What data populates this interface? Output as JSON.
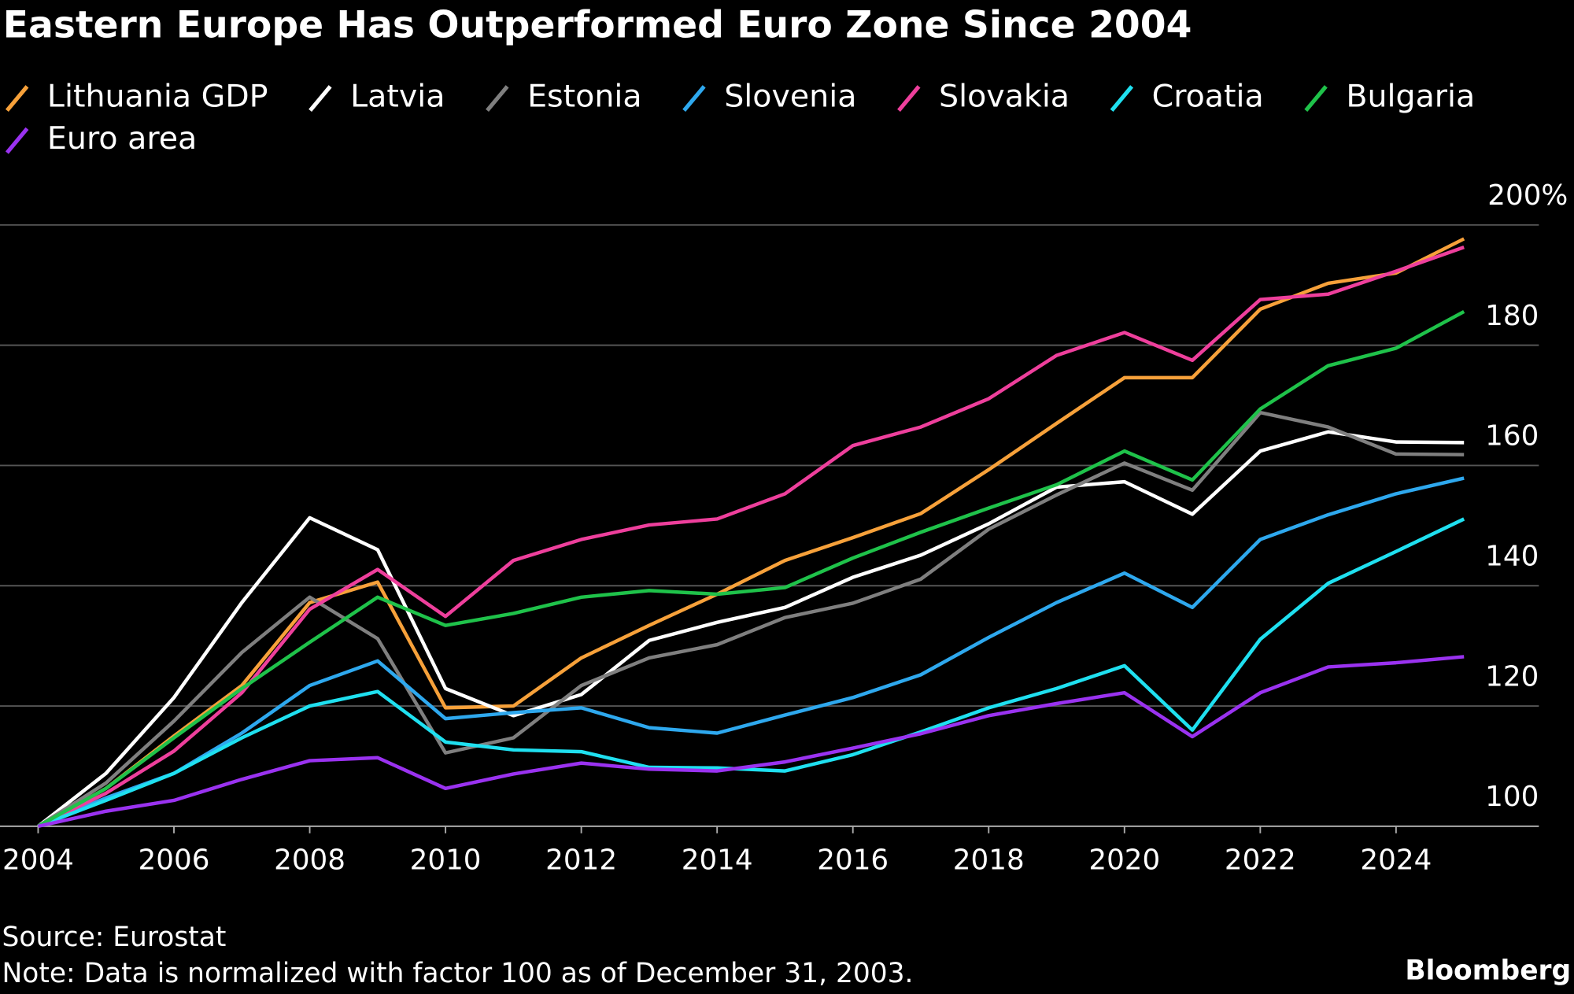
{
  "chart_data": {
    "type": "line",
    "title": "Eastern Europe Has Outperformed Euro Zone Since 2004",
    "source": "Source: Eurostat",
    "note": "Note: Data is normalized with factor 100 as of December 31, 2003.",
    "brand": "Bloomberg",
    "x": [
      2004,
      2005,
      2006,
      2007,
      2008,
      2009,
      2010,
      2011,
      2012,
      2013,
      2014,
      2015,
      2016,
      2017,
      2018,
      2019,
      2020,
      2021,
      2022,
      2023,
      2024,
      2025
    ],
    "xlim": [
      2004,
      2026
    ],
    "xticks": [
      2004,
      2006,
      2008,
      2010,
      2012,
      2014,
      2016,
      2018,
      2020,
      2022,
      2024
    ],
    "ylim": [
      100,
      200
    ],
    "yticks": [
      100,
      120,
      140,
      160,
      180,
      {
        "value": 200,
        "label": "200%"
      }
    ],
    "grid": true,
    "legend": "top-left",
    "series": [
      {
        "name": "Lithuania GDP",
        "color": "#f7a13a",
        "values": [
          100,
          106.3,
          115,
          123.4,
          137.2,
          140.6,
          119.7,
          120,
          128,
          133.4,
          138.6,
          144.2,
          148,
          152,
          159.3,
          167,
          174.6,
          174.6,
          186,
          190.3,
          192,
          197.7
        ]
      },
      {
        "name": "Latvia",
        "color": "#ffffff",
        "values": [
          100,
          108.8,
          121.4,
          137.2,
          151.3,
          146,
          122.9,
          118.4,
          121.9,
          130.9,
          133.9,
          136.4,
          141.4,
          145.1,
          150.3,
          156.4,
          157.3,
          151.9,
          162.4,
          165.6,
          163.9,
          163.8
        ]
      },
      {
        "name": "Estonia",
        "color": "#7f7f7f",
        "values": [
          100,
          107.2,
          117.5,
          128.9,
          138.1,
          131.2,
          112.2,
          114.7,
          123.4,
          128,
          130.2,
          134.7,
          137.1,
          141.1,
          149.4,
          155.1,
          160.4,
          155.9,
          168.8,
          166.4,
          161.9,
          161.8
        ]
      },
      {
        "name": "Slovenia",
        "color": "#2ea8ee",
        "values": [
          100,
          104.7,
          108.8,
          115.5,
          123.4,
          127.5,
          117.9,
          118.9,
          119.7,
          116.4,
          115.5,
          118.5,
          121.4,
          125.2,
          131.4,
          137.2,
          142.1,
          136.4,
          147.7,
          151.8,
          155.3,
          157.9
        ]
      },
      {
        "name": "Slovakia",
        "color": "#ee3f9c",
        "values": [
          100,
          105.5,
          112.5,
          122.2,
          136.1,
          142.7,
          134.9,
          144.2,
          147.7,
          150.1,
          151.1,
          155.3,
          163.3,
          166.4,
          171.1,
          178.3,
          182.1,
          177.5,
          187.6,
          188.5,
          192.3,
          196.3
        ]
      },
      {
        "name": "Croatia",
        "color": "#1fe0f0",
        "values": [
          100,
          104.3,
          108.8,
          114.7,
          120,
          122.4,
          114,
          112.7,
          112.4,
          109.8,
          109.7,
          109.2,
          111.9,
          115.7,
          119.7,
          122.9,
          126.7,
          116,
          131.1,
          140.4,
          145.7,
          151.1
        ]
      },
      {
        "name": "Bulgaria",
        "color": "#1fc24a",
        "values": [
          100,
          106.3,
          114.7,
          122.9,
          130.6,
          138.1,
          133.4,
          135.4,
          138.1,
          139.2,
          138.6,
          139.7,
          144.6,
          148.9,
          152.9,
          156.8,
          162.4,
          157.6,
          169.4,
          176.6,
          179.5,
          185.6
        ]
      },
      {
        "name": "Euro area",
        "color": "#9a32f0",
        "values": [
          100,
          102.5,
          104.3,
          107.8,
          110.9,
          111.4,
          106.3,
          108.7,
          110.5,
          109.5,
          109.2,
          110.7,
          113,
          115.4,
          118.4,
          120.4,
          122.2,
          114.9,
          122.2,
          126.5,
          127.2,
          128.2
        ]
      }
    ]
  }
}
